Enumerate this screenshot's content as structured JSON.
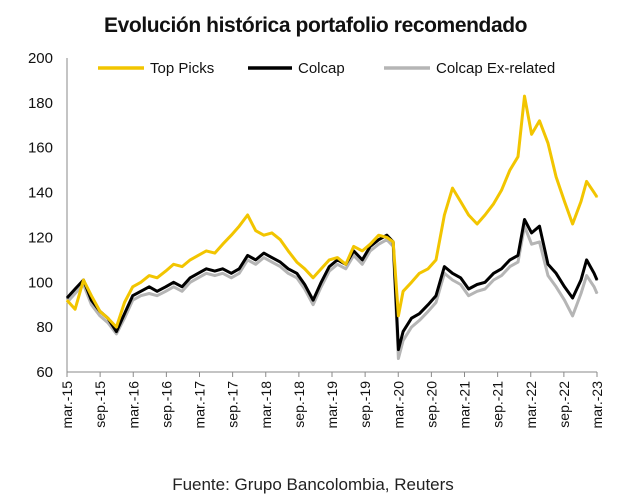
{
  "title": "Evolución histórica portafolio recomendado",
  "source": "Fuente: Grupo Bancolombia, Reuters",
  "chart_data": {
    "type": "line",
    "title": "Evolución histórica portafolio recomendado",
    "xlabel": "",
    "ylabel": "",
    "ylim": [
      60,
      200
    ],
    "yticks": [
      60,
      80,
      100,
      120,
      140,
      160,
      180,
      200
    ],
    "xlim": [
      "2015-03-01",
      "2023-03-31"
    ],
    "x_tick_labels": [
      "mar.-15",
      "sep.-15",
      "mar.-16",
      "sep.-16",
      "mar.-17",
      "sep.-17",
      "mar.-18",
      "sep.-18",
      "mar.-19",
      "sep.-19",
      "mar.-20",
      "sep.-20",
      "mar.-21",
      "sep.-21",
      "mar.-22",
      "sep.-22",
      "mar.-23"
    ],
    "grid": false,
    "legend_position": "top",
    "series": [
      {
        "name": "Top Picks",
        "color": "#f2c500",
        "points": [
          [
            "2015-03-01",
            92
          ],
          [
            "2015-04-15",
            88
          ],
          [
            "2015-06-01",
            101
          ],
          [
            "2015-07-15",
            94
          ],
          [
            "2015-09-01",
            87
          ],
          [
            "2015-10-15",
            84
          ],
          [
            "2015-12-01",
            80
          ],
          [
            "2016-01-15",
            91
          ],
          [
            "2016-03-01",
            98
          ],
          [
            "2016-04-15",
            100
          ],
          [
            "2016-06-01",
            103
          ],
          [
            "2016-07-15",
            102
          ],
          [
            "2016-09-01",
            105
          ],
          [
            "2016-10-15",
            108
          ],
          [
            "2016-12-01",
            107
          ],
          [
            "2017-01-15",
            110
          ],
          [
            "2017-03-01",
            112
          ],
          [
            "2017-04-15",
            114
          ],
          [
            "2017-06-01",
            113
          ],
          [
            "2017-07-15",
            117
          ],
          [
            "2017-09-01",
            121
          ],
          [
            "2017-10-15",
            125
          ],
          [
            "2017-12-01",
            130
          ],
          [
            "2018-01-15",
            123
          ],
          [
            "2018-03-01",
            121
          ],
          [
            "2018-04-15",
            122
          ],
          [
            "2018-06-01",
            119
          ],
          [
            "2018-07-15",
            114
          ],
          [
            "2018-09-01",
            109
          ],
          [
            "2018-10-15",
            106
          ],
          [
            "2018-12-01",
            102
          ],
          [
            "2019-01-15",
            106
          ],
          [
            "2019-03-01",
            110
          ],
          [
            "2019-04-15",
            111
          ],
          [
            "2019-06-01",
            108
          ],
          [
            "2019-07-15",
            116
          ],
          [
            "2019-09-01",
            114
          ],
          [
            "2019-10-15",
            117
          ],
          [
            "2019-12-01",
            121
          ],
          [
            "2020-01-15",
            120
          ],
          [
            "2020-02-20",
            118
          ],
          [
            "2020-03-20",
            85
          ],
          [
            "2020-04-15",
            96
          ],
          [
            "2020-06-01",
            100
          ],
          [
            "2020-07-15",
            104
          ],
          [
            "2020-09-01",
            106
          ],
          [
            "2020-10-15",
            110
          ],
          [
            "2020-12-01",
            130
          ],
          [
            "2021-01-15",
            142
          ],
          [
            "2021-03-01",
            136
          ],
          [
            "2021-04-15",
            130
          ],
          [
            "2021-06-01",
            126
          ],
          [
            "2021-07-15",
            130
          ],
          [
            "2021-09-01",
            135
          ],
          [
            "2021-10-15",
            141
          ],
          [
            "2021-12-01",
            150
          ],
          [
            "2022-01-15",
            156
          ],
          [
            "2022-02-20",
            183
          ],
          [
            "2022-04-01",
            166
          ],
          [
            "2022-05-15",
            172
          ],
          [
            "2022-07-01",
            162
          ],
          [
            "2022-08-15",
            147
          ],
          [
            "2022-10-01",
            136
          ],
          [
            "2022-11-15",
            126
          ],
          [
            "2023-01-01",
            136
          ],
          [
            "2023-02-01",
            145
          ],
          [
            "2023-03-15",
            140
          ],
          [
            "2023-03-31",
            138
          ]
        ]
      },
      {
        "name": "Colcap",
        "color": "#000000",
        "points": [
          [
            "2015-03-01",
            93
          ],
          [
            "2015-04-15",
            97
          ],
          [
            "2015-06-01",
            101
          ],
          [
            "2015-07-15",
            92
          ],
          [
            "2015-09-01",
            87
          ],
          [
            "2015-10-15",
            84
          ],
          [
            "2015-12-01",
            78
          ],
          [
            "2016-01-15",
            86
          ],
          [
            "2016-03-01",
            94
          ],
          [
            "2016-04-15",
            96
          ],
          [
            "2016-06-01",
            98
          ],
          [
            "2016-07-15",
            96
          ],
          [
            "2016-09-01",
            98
          ],
          [
            "2016-10-15",
            100
          ],
          [
            "2016-12-01",
            98
          ],
          [
            "2017-01-15",
            102
          ],
          [
            "2017-03-01",
            104
          ],
          [
            "2017-04-15",
            106
          ],
          [
            "2017-06-01",
            105
          ],
          [
            "2017-07-15",
            106
          ],
          [
            "2017-09-01",
            104
          ],
          [
            "2017-10-15",
            106
          ],
          [
            "2017-12-01",
            112
          ],
          [
            "2018-01-15",
            110
          ],
          [
            "2018-03-01",
            113
          ],
          [
            "2018-04-15",
            111
          ],
          [
            "2018-06-01",
            109
          ],
          [
            "2018-07-15",
            106
          ],
          [
            "2018-09-01",
            104
          ],
          [
            "2018-10-15",
            99
          ],
          [
            "2018-12-01",
            92
          ],
          [
            "2019-01-15",
            100
          ],
          [
            "2019-03-01",
            107
          ],
          [
            "2019-04-15",
            110
          ],
          [
            "2019-06-01",
            108
          ],
          [
            "2019-07-15",
            114
          ],
          [
            "2019-09-01",
            110
          ],
          [
            "2019-10-15",
            116
          ],
          [
            "2019-12-01",
            119
          ],
          [
            "2020-01-15",
            121
          ],
          [
            "2020-02-20",
            118
          ],
          [
            "2020-03-20",
            70
          ],
          [
            "2020-04-15",
            78
          ],
          [
            "2020-06-01",
            84
          ],
          [
            "2020-07-15",
            86
          ],
          [
            "2020-09-01",
            90
          ],
          [
            "2020-10-15",
            94
          ],
          [
            "2020-12-01",
            107
          ],
          [
            "2021-01-15",
            104
          ],
          [
            "2021-03-01",
            102
          ],
          [
            "2021-04-15",
            97
          ],
          [
            "2021-06-01",
            99
          ],
          [
            "2021-07-15",
            100
          ],
          [
            "2021-09-01",
            104
          ],
          [
            "2021-10-15",
            106
          ],
          [
            "2021-12-01",
            110
          ],
          [
            "2022-01-15",
            112
          ],
          [
            "2022-02-20",
            128
          ],
          [
            "2022-04-01",
            122
          ],
          [
            "2022-05-15",
            125
          ],
          [
            "2022-07-01",
            108
          ],
          [
            "2022-08-15",
            104
          ],
          [
            "2022-10-01",
            98
          ],
          [
            "2022-11-15",
            93
          ],
          [
            "2023-01-01",
            101
          ],
          [
            "2023-02-01",
            110
          ],
          [
            "2023-03-15",
            104
          ],
          [
            "2023-03-31",
            101
          ]
        ]
      },
      {
        "name": "Colcap Ex-related",
        "color": "#b5b5b5",
        "points": [
          [
            "2015-03-01",
            91
          ],
          [
            "2015-04-15",
            95
          ],
          [
            "2015-06-01",
            99
          ],
          [
            "2015-07-15",
            90
          ],
          [
            "2015-09-01",
            85
          ],
          [
            "2015-10-15",
            82
          ],
          [
            "2015-12-01",
            77
          ],
          [
            "2016-01-15",
            84
          ],
          [
            "2016-03-01",
            92
          ],
          [
            "2016-04-15",
            94
          ],
          [
            "2016-06-01",
            95
          ],
          [
            "2016-07-15",
            94
          ],
          [
            "2016-09-01",
            96
          ],
          [
            "2016-10-15",
            98
          ],
          [
            "2016-12-01",
            96
          ],
          [
            "2017-01-15",
            100
          ],
          [
            "2017-03-01",
            102
          ],
          [
            "2017-04-15",
            104
          ],
          [
            "2017-06-01",
            103
          ],
          [
            "2017-07-15",
            104
          ],
          [
            "2017-09-01",
            102
          ],
          [
            "2017-10-15",
            104
          ],
          [
            "2017-12-01",
            110
          ],
          [
            "2018-01-15",
            108
          ],
          [
            "2018-03-01",
            111
          ],
          [
            "2018-04-15",
            109
          ],
          [
            "2018-06-01",
            107
          ],
          [
            "2018-07-15",
            104
          ],
          [
            "2018-09-01",
            102
          ],
          [
            "2018-10-15",
            97
          ],
          [
            "2018-12-01",
            90
          ],
          [
            "2019-01-15",
            98
          ],
          [
            "2019-03-01",
            105
          ],
          [
            "2019-04-15",
            108
          ],
          [
            "2019-06-01",
            106
          ],
          [
            "2019-07-15",
            112
          ],
          [
            "2019-09-01",
            108
          ],
          [
            "2019-10-15",
            114
          ],
          [
            "2019-12-01",
            117
          ],
          [
            "2020-01-15",
            119
          ],
          [
            "2020-02-20",
            116
          ],
          [
            "2020-03-20",
            66
          ],
          [
            "2020-04-15",
            74
          ],
          [
            "2020-06-01",
            80
          ],
          [
            "2020-07-15",
            83
          ],
          [
            "2020-09-01",
            87
          ],
          [
            "2020-10-15",
            91
          ],
          [
            "2020-12-01",
            104
          ],
          [
            "2021-01-15",
            101
          ],
          [
            "2021-03-01",
            99
          ],
          [
            "2021-04-15",
            94
          ],
          [
            "2021-06-01",
            96
          ],
          [
            "2021-07-15",
            97
          ],
          [
            "2021-09-01",
            101
          ],
          [
            "2021-10-15",
            103
          ],
          [
            "2021-12-01",
            107
          ],
          [
            "2022-01-15",
            109
          ],
          [
            "2022-02-20",
            125
          ],
          [
            "2022-04-01",
            117
          ],
          [
            "2022-05-15",
            118
          ],
          [
            "2022-07-01",
            103
          ],
          [
            "2022-08-15",
            98
          ],
          [
            "2022-10-01",
            92
          ],
          [
            "2022-11-15",
            85
          ],
          [
            "2023-01-01",
            95
          ],
          [
            "2023-02-01",
            103
          ],
          [
            "2023-03-15",
            98
          ],
          [
            "2023-03-31",
            95
          ]
        ]
      }
    ]
  }
}
